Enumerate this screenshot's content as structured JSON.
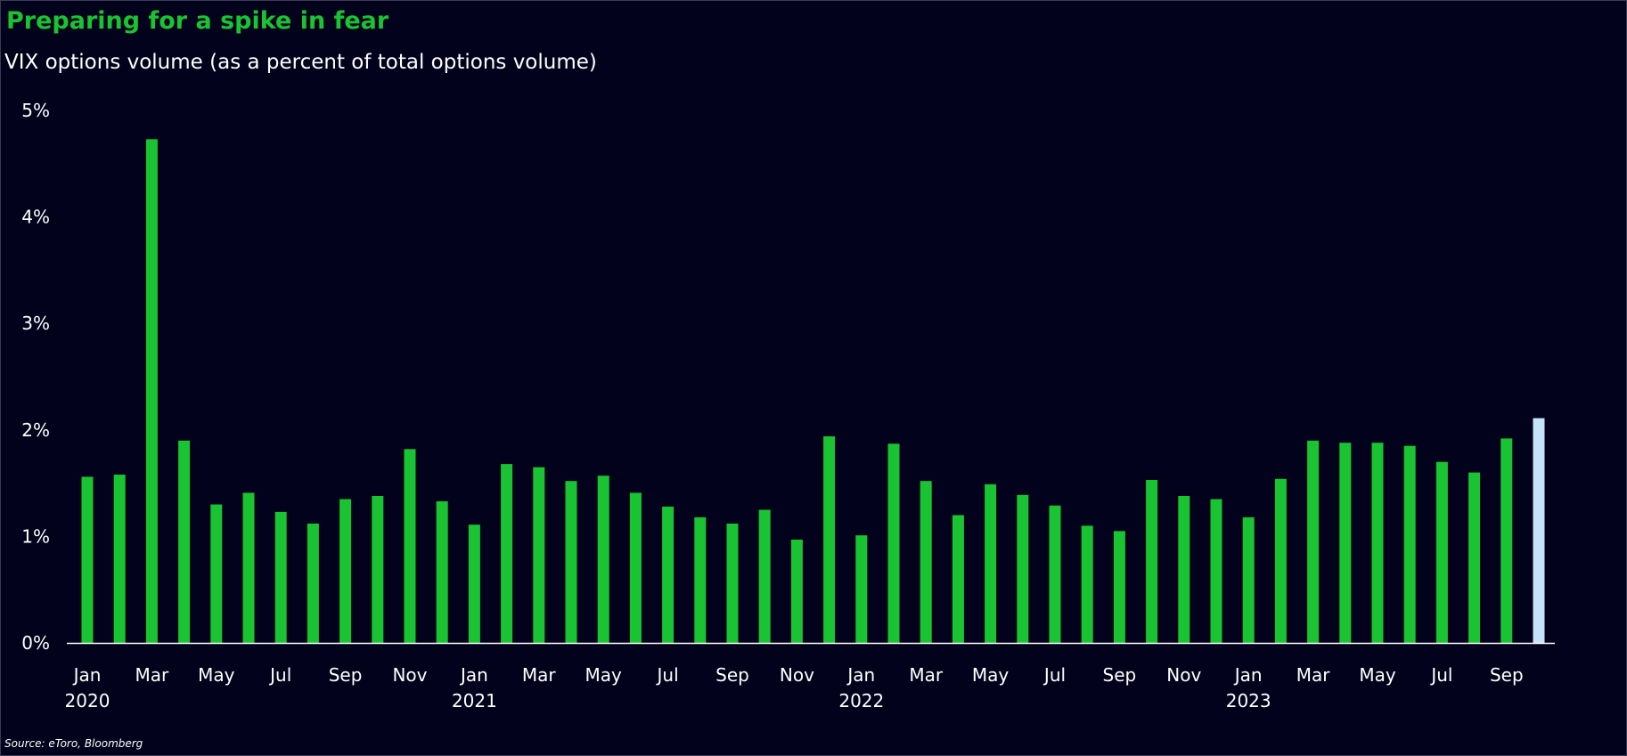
{
  "title": "Preparing for a spike in fear",
  "subtitle": "VIX options volume (as a percent of total options volume)",
  "source": "Source: eToro, Bloomberg",
  "colors": {
    "background": "#02021c",
    "bar": "#19c332",
    "bar_highlight": "#c5e4f9",
    "title": "#19c332",
    "text": "#ffffff",
    "axis": "#ffffff"
  },
  "chart_data": {
    "type": "bar",
    "title": "Preparing for a spike in fear",
    "subtitle": "VIX options volume (as a percent of total options volume)",
    "xlabel": "",
    "ylabel": "",
    "ylim": [
      0,
      5
    ],
    "y_unit": "%",
    "y_ticks": [
      "0%",
      "1%",
      "2%",
      "3%",
      "4%",
      "5%"
    ],
    "grid": false,
    "legend": "none",
    "categories": [
      "Jan 2020",
      "Feb 2020",
      "Mar 2020",
      "Apr 2020",
      "May 2020",
      "Jun 2020",
      "Jul 2020",
      "Aug 2020",
      "Sep 2020",
      "Oct 2020",
      "Nov 2020",
      "Dec 2020",
      "Jan 2021",
      "Feb 2021",
      "Mar 2021",
      "Apr 2021",
      "May 2021",
      "Jun 2021",
      "Jul 2021",
      "Aug 2021",
      "Sep 2021",
      "Oct 2021",
      "Nov 2021",
      "Dec 2021",
      "Jan 2022",
      "Feb 2022",
      "Mar 2022",
      "Apr 2022",
      "May 2022",
      "Jun 2022",
      "Jul 2022",
      "Aug 2022",
      "Sep 2022",
      "Oct 2022",
      "Nov 2022",
      "Dec 2022",
      "Jan 2023",
      "Feb 2023",
      "Mar 2023",
      "Apr 2023",
      "May 2023",
      "Jun 2023",
      "Jul 2023",
      "Aug 2023",
      "Sep 2023",
      "Oct 2023"
    ],
    "values": [
      1.56,
      1.58,
      4.73,
      1.9,
      1.3,
      1.41,
      1.23,
      1.12,
      1.35,
      1.38,
      1.82,
      1.33,
      1.11,
      1.68,
      1.65,
      1.52,
      1.57,
      1.41,
      1.28,
      1.18,
      1.12,
      1.25,
      0.97,
      1.94,
      1.01,
      1.87,
      1.52,
      1.2,
      1.49,
      1.39,
      1.29,
      1.1,
      1.05,
      1.53,
      1.38,
      1.35,
      1.18,
      1.54,
      1.9,
      1.88,
      1.88,
      1.85,
      1.7,
      1.6,
      1.92,
      2.11
    ],
    "highlight_index": 45,
    "x_tick_labels": [
      "Jan",
      "Mar",
      "May",
      "Jul",
      "Sep",
      "Nov",
      "Jan",
      "Mar",
      "May",
      "Jul",
      "Sep",
      "Nov",
      "Jan",
      "Mar",
      "May",
      "Jul",
      "Sep",
      "Nov",
      "Jan",
      "Mar",
      "May",
      "Jul",
      "Sep"
    ],
    "x_tick_indices": [
      0,
      2,
      4,
      6,
      8,
      10,
      12,
      14,
      16,
      18,
      20,
      22,
      24,
      26,
      28,
      30,
      32,
      34,
      36,
      38,
      40,
      42,
      44
    ],
    "year_labels": [
      "2020",
      "2021",
      "2022",
      "2023"
    ],
    "year_indices": [
      0,
      12,
      24,
      36
    ]
  }
}
